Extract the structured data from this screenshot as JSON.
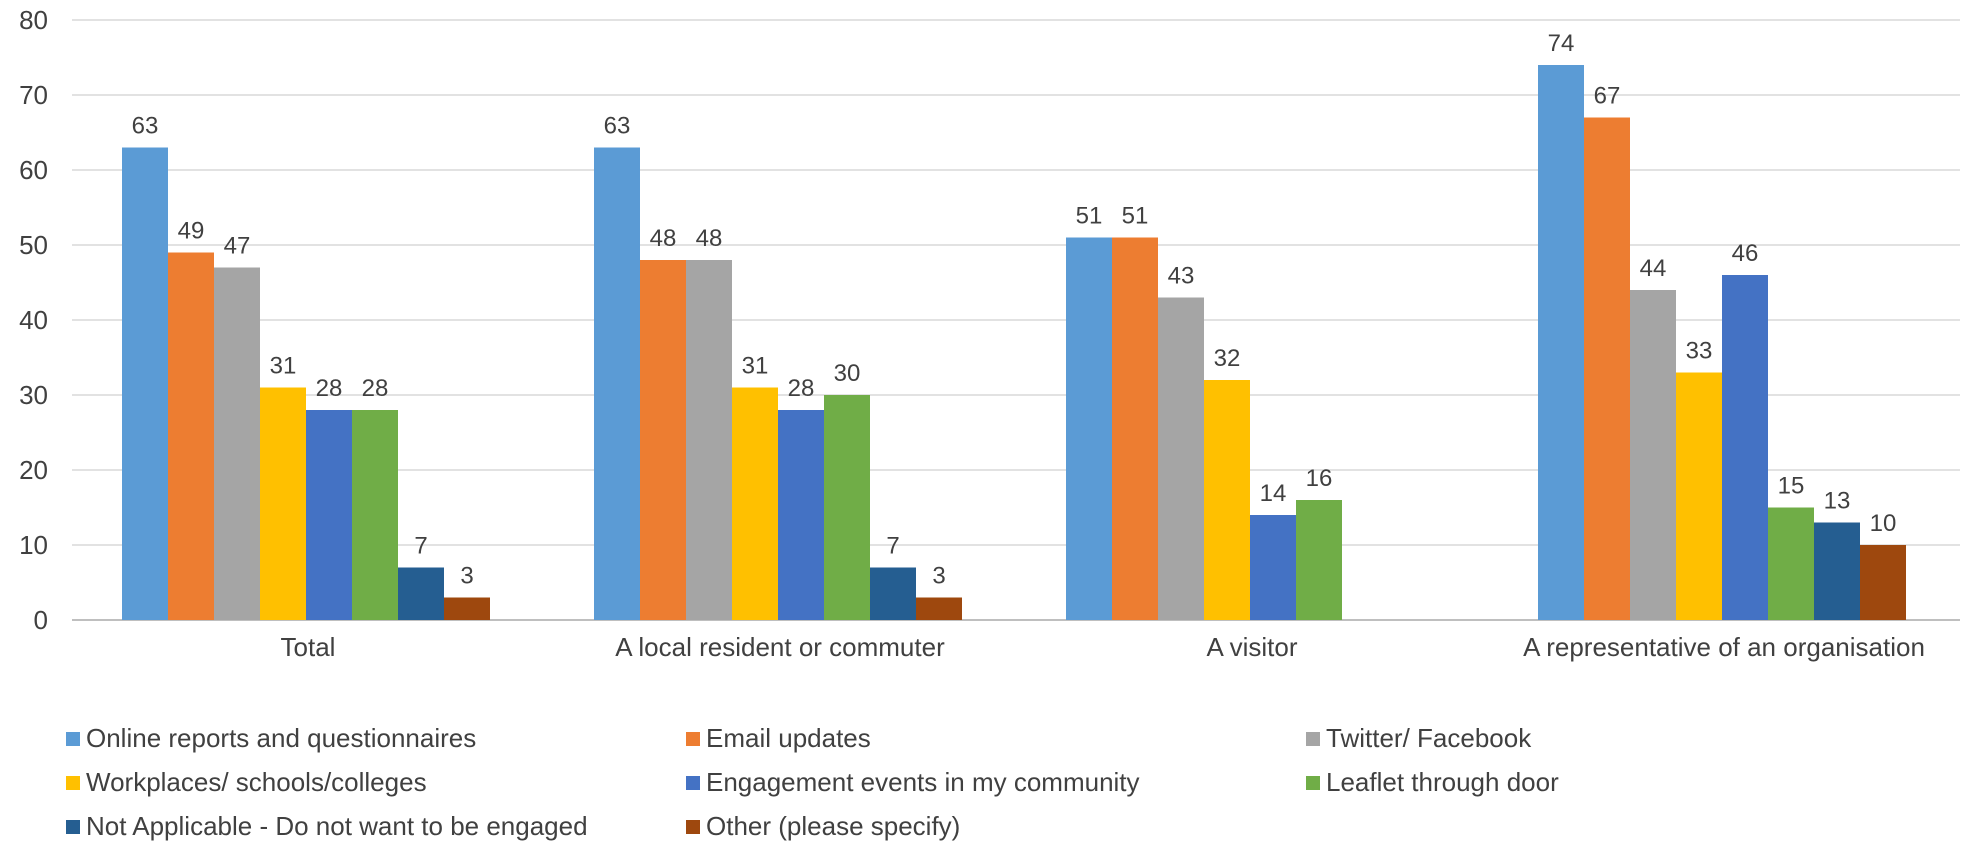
{
  "chart_data": {
    "type": "bar",
    "title": "",
    "xlabel": "",
    "ylabel": "",
    "ylim": [
      0,
      80
    ],
    "yticks": [
      0,
      10,
      20,
      30,
      40,
      50,
      60,
      70,
      80
    ],
    "grid": true,
    "legend_position": "bottom",
    "categories": [
      "Total",
      "A local resident or commuter",
      "A visitor",
      "A representative of an organisation"
    ],
    "series": [
      {
        "name": "Online reports and questionnaires",
        "color": "#5B9BD5",
        "values": [
          63,
          63,
          51,
          74
        ]
      },
      {
        "name": "Email updates",
        "color": "#ED7D31",
        "values": [
          49,
          48,
          51,
          67
        ]
      },
      {
        "name": "Twitter/ Facebook",
        "color": "#A5A5A5",
        "values": [
          47,
          48,
          43,
          44
        ]
      },
      {
        "name": "Workplaces/ schools/colleges",
        "color": "#FFC000",
        "values": [
          31,
          31,
          32,
          33
        ]
      },
      {
        "name": "Engagement events in my community",
        "color": "#4472C4",
        "values": [
          28,
          28,
          14,
          46
        ]
      },
      {
        "name": "Leaflet through door",
        "color": "#70AD47",
        "values": [
          28,
          30,
          16,
          15
        ]
      },
      {
        "name": "Not Applicable - Do not want to be engaged",
        "color": "#255E91",
        "values": [
          7,
          7,
          null,
          13
        ]
      },
      {
        "name": "Other (please specify)",
        "color": "#9E480E",
        "values": [
          3,
          3,
          null,
          10
        ]
      }
    ]
  }
}
